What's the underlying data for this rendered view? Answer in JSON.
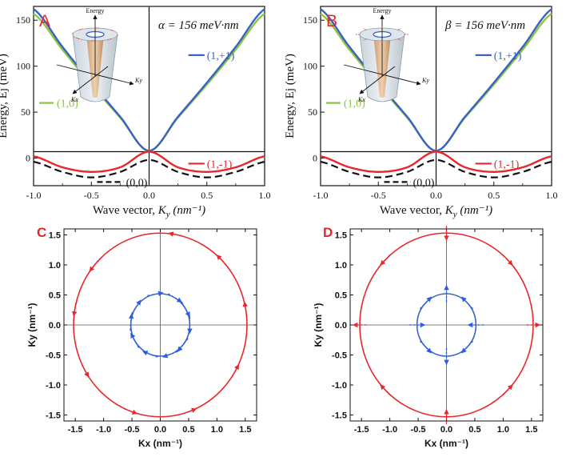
{
  "colors": {
    "green": "#8dc63f",
    "blue": "#3a62c4",
    "red": "#e8262b",
    "black": "#111111",
    "arrow_blue": "#2a5ee8",
    "arrow_red": "#e8262b",
    "panel_letter": "#e8262b"
  },
  "chart_data": [
    {
      "type": "line",
      "panel": "A",
      "annotation": "α = 156 meV·nm",
      "xlabel_text": "Wave vector,",
      "xlabel_var": "K",
      "xlabel_sub": "y",
      "xlabel_unit": "(nm⁻¹)",
      "ylabel": "Energy, Ej (meV)",
      "xlim": [
        -1.0,
        1.0
      ],
      "ylim": [
        -30,
        165
      ],
      "xticks": [
        -1.0,
        -0.5,
        0.0,
        0.5,
        1.0
      ],
      "xtick_labels": [
        "-1.0",
        "-0.5",
        "0.0",
        "0.5",
        "1.0"
      ],
      "yticks": [
        0,
        50,
        100,
        150
      ],
      "ytick_labels": [
        "0",
        "50",
        "100",
        "150"
      ],
      "inset_labels": {
        "energy": "Energy",
        "kx": "Kx",
        "ky": "Ky"
      },
      "series": [
        {
          "name": "(1,0)",
          "color": "#8dc63f",
          "style": "solid",
          "x": [
            -1.0,
            -0.75,
            -0.5,
            -0.25,
            0.0,
            0.25,
            0.5,
            0.75,
            1.0
          ],
          "y": [
            157,
            118,
            80,
            44,
            8,
            44,
            80,
            118,
            157
          ]
        },
        {
          "name": "(1,+1)",
          "color": "#3a62c4",
          "style": "solid",
          "x": [
            -1.0,
            -0.75,
            -0.5,
            -0.25,
            0.0,
            0.25,
            0.5,
            0.75,
            1.0
          ],
          "y": [
            162,
            121,
            82,
            45,
            8,
            45,
            82,
            121,
            162
          ]
        },
        {
          "name": "(1,-1)",
          "color": "#e8262b",
          "style": "solid",
          "x": [
            -1.0,
            -0.75,
            -0.5,
            -0.25,
            0.0,
            0.25,
            0.5,
            0.75,
            1.0
          ],
          "y": [
            2,
            -10,
            -15,
            -10,
            7,
            -10,
            -15,
            -10,
            2
          ]
        },
        {
          "name": "(0,0)",
          "color": "#111111",
          "style": "dashed",
          "x": [
            -1.0,
            -0.75,
            -0.5,
            -0.25,
            0.0,
            0.25,
            0.5,
            0.75,
            1.0
          ],
          "y": [
            -4,
            -15,
            -21,
            -15,
            -2,
            -15,
            -21,
            -15,
            -4
          ]
        }
      ],
      "hline": 7
    },
    {
      "type": "line",
      "panel": "B",
      "annotation": "β = 156 meV·nm",
      "xlabel_text": "Wave vector,",
      "xlabel_var": "K",
      "xlabel_sub": "y",
      "xlabel_unit": "(nm⁻¹)",
      "ylabel": "Energy, Ej (meV)",
      "xlim": [
        -1.0,
        1.0
      ],
      "ylim": [
        -30,
        165
      ],
      "xticks": [
        -1.0,
        -0.5,
        0.0,
        0.5,
        1.0
      ],
      "xtick_labels": [
        "-1.0",
        "-0.5",
        "0.0",
        "0.5",
        "1.0"
      ],
      "yticks": [
        0,
        50,
        100,
        150
      ],
      "ytick_labels": [
        "0",
        "50",
        "100",
        "150"
      ],
      "inset_labels": {
        "energy": "Energy",
        "kx": "Kx",
        "ky": "Ky"
      },
      "series": [
        {
          "name": "(1,0)",
          "color": "#8dc63f",
          "style": "solid",
          "x": [
            -1.0,
            -0.75,
            -0.5,
            -0.25,
            0.0,
            0.25,
            0.5,
            0.75,
            1.0
          ],
          "y": [
            157,
            118,
            80,
            44,
            8,
            44,
            80,
            118,
            157
          ]
        },
        {
          "name": "(1,+1)",
          "color": "#3a62c4",
          "style": "solid",
          "x": [
            -1.0,
            -0.75,
            -0.5,
            -0.25,
            0.0,
            0.25,
            0.5,
            0.75,
            1.0
          ],
          "y": [
            162,
            121,
            82,
            45,
            8,
            45,
            82,
            121,
            162
          ]
        },
        {
          "name": "(1,-1)",
          "color": "#e8262b",
          "style": "solid",
          "x": [
            -1.0,
            -0.75,
            -0.5,
            -0.25,
            0.0,
            0.25,
            0.5,
            0.75,
            1.0
          ],
          "y": [
            2,
            -10,
            -15,
            -10,
            7,
            -10,
            -15,
            -10,
            2
          ]
        },
        {
          "name": "(0,0)",
          "color": "#111111",
          "style": "dashed",
          "x": [
            -1.0,
            -0.75,
            -0.5,
            -0.25,
            0.0,
            0.25,
            0.5,
            0.75,
            1.0
          ],
          "y": [
            -4,
            -15,
            -21,
            -15,
            -2,
            -15,
            -21,
            -15,
            -4
          ]
        }
      ],
      "hline": 7
    },
    {
      "type": "scatter",
      "panel": "C",
      "xlabel": "Kx (nm⁻¹)",
      "ylabel": "Ky (nm⁻¹)",
      "xlim": [
        -1.7,
        1.7
      ],
      "ylim": [
        -1.6,
        1.6
      ],
      "ticks": [
        -1.5,
        -1.0,
        -0.5,
        0.0,
        0.5,
        1.0,
        1.5
      ],
      "tick_labels": [
        "-1.5",
        "-1.0",
        "-0.5",
        "0.0",
        "0.5",
        "1.0",
        "1.5"
      ],
      "circles": [
        {
          "radius": 1.53,
          "color": "#e8262b"
        },
        {
          "radius": 0.52,
          "color": "#3a62c4"
        }
      ],
      "spin_texture": "tangential",
      "outer_arrow_angles": [
        10,
        45,
        80,
        140,
        170,
        210,
        250,
        290,
        330
      ],
      "inner_arrow_angles": [
        0,
        30,
        60,
        100,
        145,
        175,
        210,
        250,
        290,
        320
      ]
    },
    {
      "type": "scatter",
      "panel": "D",
      "xlabel": "Kx (nm⁻¹)",
      "ylabel": "Ky (nm⁻¹)",
      "xlim": [
        -1.7,
        1.7
      ],
      "ylim": [
        -1.6,
        1.6
      ],
      "ticks": [
        -1.5,
        -1.0,
        -0.5,
        0.0,
        0.5,
        1.0,
        1.5
      ],
      "tick_labels": [
        "-1.5",
        "-1.0",
        "-0.5",
        "0.0",
        "0.5",
        "1.0",
        "1.5"
      ],
      "circles": [
        {
          "radius": 1.53,
          "color": "#e8262b"
        },
        {
          "radius": 0.52,
          "color": "#3a62c4"
        }
      ],
      "spin_texture": "dresselhaus",
      "outer_arrow_angles": [
        0,
        45,
        90,
        135,
        180,
        225,
        270,
        315
      ],
      "inner_arrow_angles": [
        0,
        45,
        90,
        135,
        180,
        225,
        270,
        315
      ]
    }
  ]
}
